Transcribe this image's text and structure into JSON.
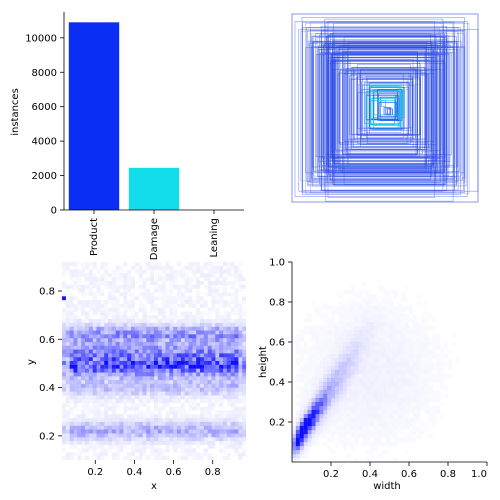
{
  "chart_data": [
    {
      "type": "bar",
      "categories": [
        "Product",
        "Damage",
        "Leaning"
      ],
      "values": [
        10900,
        2450,
        30
      ],
      "colors": [
        "#0b2ef5",
        "#13dceb",
        "#ffffff"
      ],
      "ylabel": "instances",
      "ylim": [
        0,
        11500
      ],
      "yticks": [
        "0",
        "2000",
        "4000",
        "6000",
        "8000",
        "10000"
      ]
    },
    {
      "type": "box-overlay",
      "description_color": "#1f3de0",
      "axes": false
    },
    {
      "type": "heatmap",
      "xlabel": "x",
      "ylabel": "y",
      "xlim": [
        0.03,
        0.97
      ],
      "ylim": [
        0.1,
        0.92
      ],
      "xticks": [
        "0.2",
        "0.4",
        "0.6",
        "0.8"
      ],
      "yticks": [
        "0.2",
        "0.4",
        "0.6",
        "0.8"
      ],
      "color": "#0000ff"
    },
    {
      "type": "heatmap",
      "xlabel": "width",
      "ylabel": "height",
      "xlim": [
        0,
        1
      ],
      "ylim": [
        0,
        1
      ],
      "xticks": [
        "0.2",
        "0.4",
        "0.6",
        "0.8",
        "1.0"
      ],
      "yticks": [
        "0.2",
        "0.4",
        "0.6",
        "0.8",
        "1.0"
      ],
      "color": "#0000ff"
    }
  ]
}
